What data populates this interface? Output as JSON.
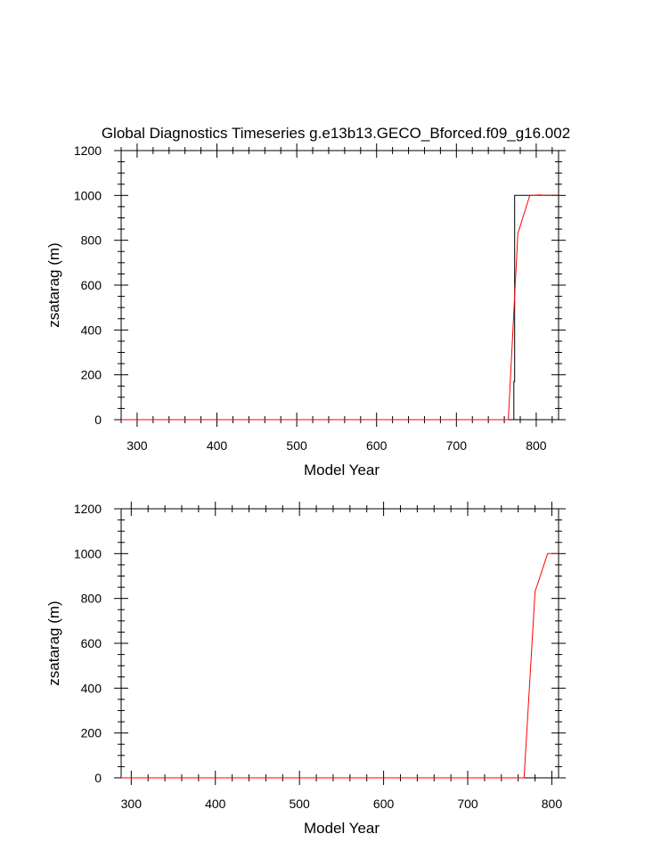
{
  "title": "Global Diagnostics Timeseries g.e13b13.GECO_Bforced.f09_g16.002",
  "chart_data": [
    {
      "type": "line",
      "xlabel": "Model Year",
      "ylabel": "zsatarag (m)",
      "xlim": [
        280,
        828
      ],
      "ylim": [
        0,
        1200
      ],
      "xticks": [
        300,
        400,
        500,
        600,
        700,
        800
      ],
      "yticks": [
        0,
        200,
        400,
        600,
        800,
        1000,
        1200
      ],
      "series": [
        {
          "color": "#000000",
          "x": [
            280,
            772,
            772,
            773,
            773,
            828
          ],
          "y": [
            0,
            0,
            170,
            170,
            1000,
            1000
          ]
        },
        {
          "color": "#ff0000",
          "x": [
            280,
            765,
            777,
            792,
            805,
            810,
            828
          ],
          "y": [
            0,
            0,
            830,
            1000,
            1002,
            1000,
            1000
          ]
        }
      ]
    },
    {
      "type": "line",
      "xlabel": "Model Year",
      "ylabel": "zsatarag (m)",
      "xlim": [
        288,
        808
      ],
      "ylim": [
        0,
        1200
      ],
      "xticks": [
        300,
        400,
        500,
        600,
        700,
        800
      ],
      "yticks": [
        0,
        200,
        400,
        600,
        800,
        1000,
        1200
      ],
      "series": [
        {
          "color": "#ff0000",
          "x": [
            288,
            767,
            780,
            795,
            808
          ],
          "y": [
            0,
            0,
            830,
            1000,
            1000
          ]
        }
      ]
    }
  ]
}
